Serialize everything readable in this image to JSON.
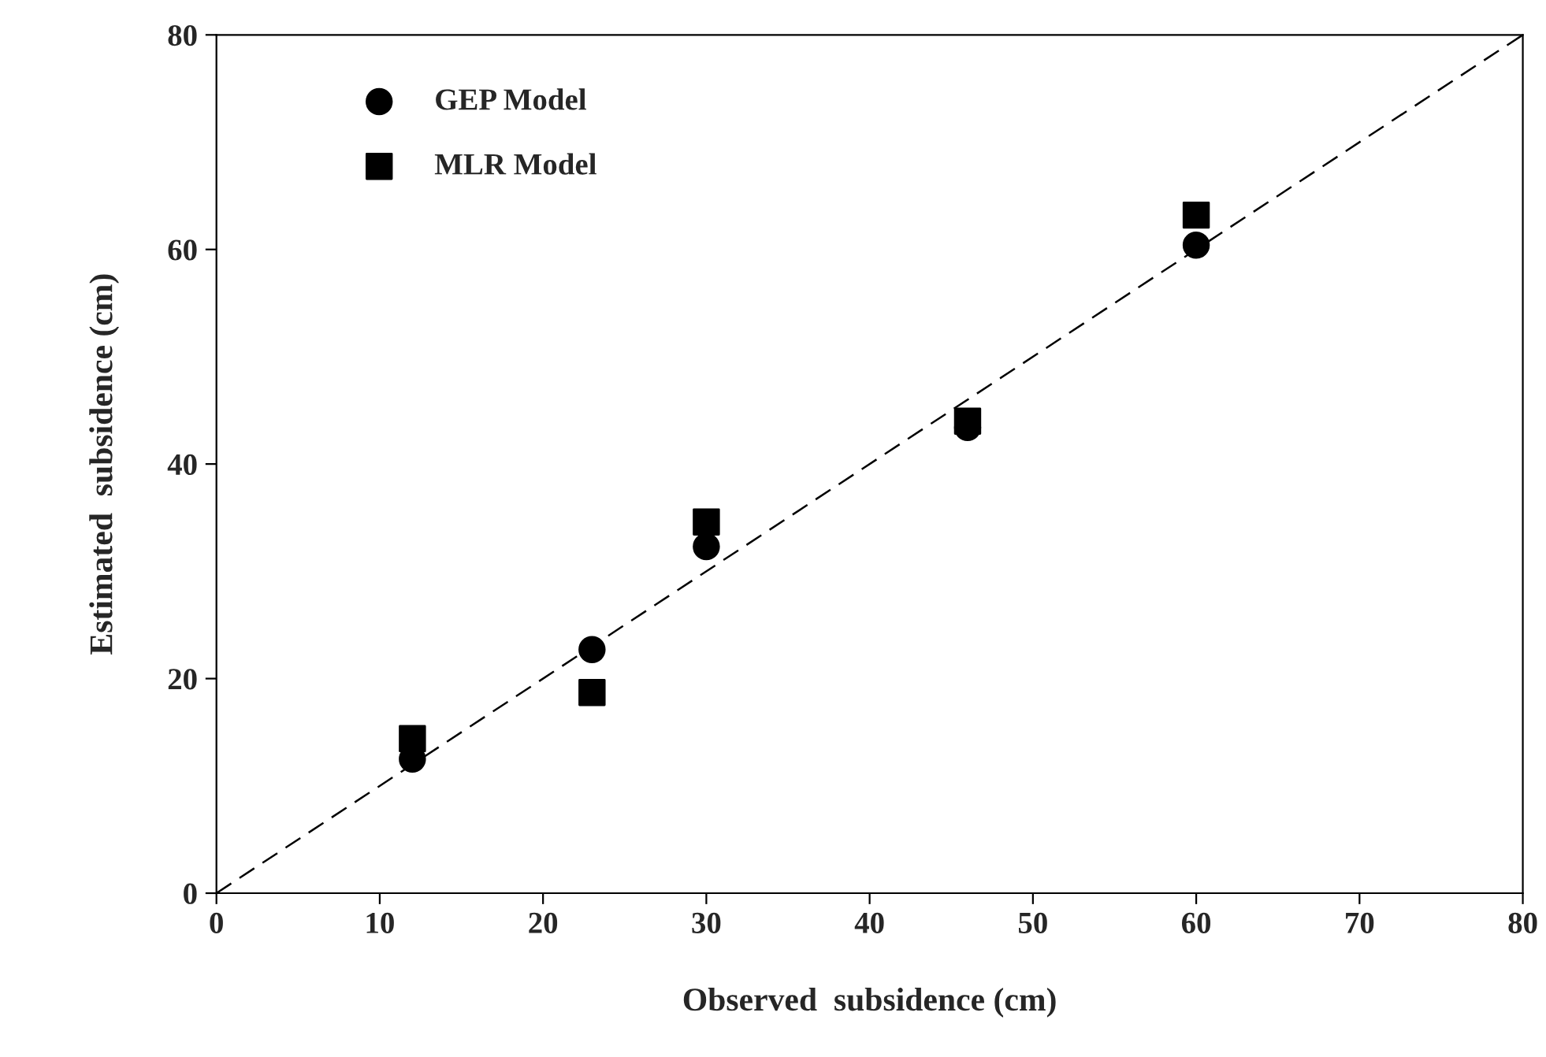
{
  "chart_data": {
    "type": "scatter",
    "xlabel": "Observed  subsidence (cm)",
    "ylabel": "Estimated  subsidence (cm)",
    "xlim": [
      0,
      80
    ],
    "ylim": [
      0,
      80
    ],
    "xticks": [
      0,
      10,
      20,
      30,
      40,
      50,
      60,
      70,
      80
    ],
    "yticks": [
      0,
      20,
      40,
      60,
      80
    ],
    "grid": false,
    "legend": "top left",
    "series": [
      {
        "name": "GEP Model",
        "color": "#000000",
        "marker": "circle",
        "x": [
          12,
          23,
          30,
          46,
          60
        ],
        "values": [
          12.5,
          22.7,
          32.3,
          43.4,
          60.4
        ]
      },
      {
        "name": "MLR Model",
        "color": "#000000",
        "marker": "square",
        "x": [
          12,
          23,
          30,
          46,
          60
        ],
        "values": [
          14.4,
          18.7,
          34.6,
          44.0,
          63.2
        ]
      },
      {
        "type": "line",
        "color": "#000000",
        "line_style": "dashed",
        "marker": "none",
        "x": [
          0,
          80
        ],
        "values": [
          0,
          80
        ]
      }
    ]
  }
}
